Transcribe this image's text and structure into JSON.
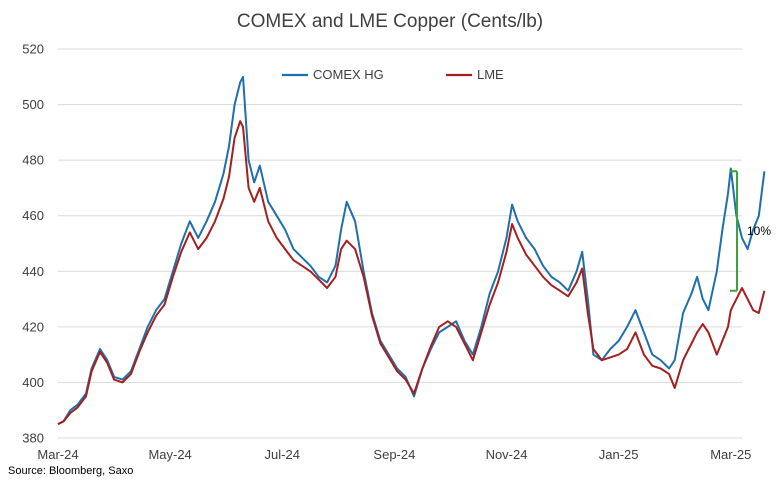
{
  "chart_data": {
    "type": "line",
    "title": "COMEX and LME Copper (Cents/lb)",
    "xlabel": "",
    "ylabel": "",
    "ylim": [
      380,
      520
    ],
    "yticks": [
      380,
      400,
      420,
      440,
      460,
      480,
      500,
      520
    ],
    "xticks": [
      "Mar-24",
      "May-24",
      "Jul-24",
      "Sep-24",
      "Nov-24",
      "Jan-25",
      "Mar-25"
    ],
    "xlim_months": [
      0,
      12.2
    ],
    "series": [
      {
        "name": "COMEX HG",
        "color": "#1f6fad",
        "points": [
          [
            0.0,
            385
          ],
          [
            0.1,
            386
          ],
          [
            0.22,
            390
          ],
          [
            0.35,
            392
          ],
          [
            0.5,
            396
          ],
          [
            0.6,
            405
          ],
          [
            0.75,
            412
          ],
          [
            0.88,
            408
          ],
          [
            1.0,
            402
          ],
          [
            1.15,
            401
          ],
          [
            1.3,
            404
          ],
          [
            1.45,
            412
          ],
          [
            1.6,
            420
          ],
          [
            1.75,
            426
          ],
          [
            1.9,
            430
          ],
          [
            2.05,
            440
          ],
          [
            2.2,
            450
          ],
          [
            2.35,
            458
          ],
          [
            2.5,
            452
          ],
          [
            2.65,
            458
          ],
          [
            2.8,
            465
          ],
          [
            2.95,
            475
          ],
          [
            3.05,
            485
          ],
          [
            3.15,
            500
          ],
          [
            3.25,
            508
          ],
          [
            3.3,
            510
          ],
          [
            3.4,
            480
          ],
          [
            3.5,
            472
          ],
          [
            3.6,
            478
          ],
          [
            3.75,
            465
          ],
          [
            3.9,
            460
          ],
          [
            4.05,
            455
          ],
          [
            4.2,
            448
          ],
          [
            4.35,
            445
          ],
          [
            4.5,
            442
          ],
          [
            4.65,
            438
          ],
          [
            4.8,
            436
          ],
          [
            4.95,
            442
          ],
          [
            5.05,
            455
          ],
          [
            5.15,
            465
          ],
          [
            5.3,
            458
          ],
          [
            5.45,
            440
          ],
          [
            5.6,
            425
          ],
          [
            5.75,
            415
          ],
          [
            5.9,
            410
          ],
          [
            6.05,
            405
          ],
          [
            6.2,
            402
          ],
          [
            6.35,
            395
          ],
          [
            6.5,
            405
          ],
          [
            6.65,
            412
          ],
          [
            6.8,
            418
          ],
          [
            6.95,
            420
          ],
          [
            7.1,
            422
          ],
          [
            7.25,
            415
          ],
          [
            7.4,
            410
          ],
          [
            7.55,
            420
          ],
          [
            7.7,
            432
          ],
          [
            7.85,
            440
          ],
          [
            8.0,
            452
          ],
          [
            8.1,
            464
          ],
          [
            8.2,
            458
          ],
          [
            8.35,
            452
          ],
          [
            8.5,
            448
          ],
          [
            8.65,
            442
          ],
          [
            8.8,
            438
          ],
          [
            8.95,
            436
          ],
          [
            9.1,
            433
          ],
          [
            9.25,
            440
          ],
          [
            9.35,
            447
          ],
          [
            9.45,
            430
          ],
          [
            9.55,
            410
          ],
          [
            9.7,
            408
          ],
          [
            9.85,
            412
          ],
          [
            10.0,
            415
          ],
          [
            10.15,
            420
          ],
          [
            10.3,
            426
          ],
          [
            10.45,
            418
          ],
          [
            10.6,
            410
          ],
          [
            10.75,
            408
          ],
          [
            10.9,
            405
          ],
          [
            11.0,
            408
          ],
          [
            11.15,
            425
          ],
          [
            11.3,
            432
          ],
          [
            11.4,
            438
          ],
          [
            11.5,
            430
          ],
          [
            11.6,
            426
          ],
          [
            11.75,
            440
          ],
          [
            11.85,
            455
          ],
          [
            11.95,
            468
          ],
          [
            12.0,
            477
          ],
          [
            12.1,
            460
          ],
          [
            12.2,
            452
          ],
          [
            12.3,
            448
          ],
          [
            12.4,
            455
          ],
          [
            12.5,
            460
          ],
          [
            12.6,
            476
          ]
        ]
      },
      {
        "name": "LME",
        "color": "#a51f1f",
        "points": [
          [
            0.0,
            385
          ],
          [
            0.1,
            386
          ],
          [
            0.22,
            389
          ],
          [
            0.35,
            391
          ],
          [
            0.5,
            395
          ],
          [
            0.6,
            404
          ],
          [
            0.75,
            411
          ],
          [
            0.88,
            407
          ],
          [
            1.0,
            401
          ],
          [
            1.15,
            400
          ],
          [
            1.3,
            403
          ],
          [
            1.45,
            411
          ],
          [
            1.6,
            418
          ],
          [
            1.75,
            424
          ],
          [
            1.9,
            428
          ],
          [
            2.05,
            438
          ],
          [
            2.2,
            447
          ],
          [
            2.35,
            454
          ],
          [
            2.5,
            448
          ],
          [
            2.65,
            452
          ],
          [
            2.8,
            458
          ],
          [
            2.95,
            466
          ],
          [
            3.05,
            474
          ],
          [
            3.15,
            488
          ],
          [
            3.25,
            494
          ],
          [
            3.3,
            492
          ],
          [
            3.4,
            470
          ],
          [
            3.5,
            465
          ],
          [
            3.6,
            470
          ],
          [
            3.75,
            458
          ],
          [
            3.9,
            452
          ],
          [
            4.05,
            448
          ],
          [
            4.2,
            444
          ],
          [
            4.35,
            442
          ],
          [
            4.5,
            440
          ],
          [
            4.65,
            437
          ],
          [
            4.8,
            434
          ],
          [
            4.95,
            438
          ],
          [
            5.05,
            448
          ],
          [
            5.15,
            451
          ],
          [
            5.3,
            448
          ],
          [
            5.45,
            438
          ],
          [
            5.6,
            424
          ],
          [
            5.75,
            414
          ],
          [
            5.9,
            409
          ],
          [
            6.05,
            404
          ],
          [
            6.2,
            401
          ],
          [
            6.35,
            396
          ],
          [
            6.5,
            405
          ],
          [
            6.65,
            413
          ],
          [
            6.8,
            420
          ],
          [
            6.95,
            422
          ],
          [
            7.1,
            420
          ],
          [
            7.25,
            414
          ],
          [
            7.4,
            408
          ],
          [
            7.55,
            418
          ],
          [
            7.7,
            428
          ],
          [
            7.85,
            436
          ],
          [
            8.0,
            447
          ],
          [
            8.1,
            457
          ],
          [
            8.2,
            452
          ],
          [
            8.35,
            446
          ],
          [
            8.5,
            442
          ],
          [
            8.65,
            438
          ],
          [
            8.8,
            435
          ],
          [
            8.95,
            433
          ],
          [
            9.1,
            431
          ],
          [
            9.25,
            436
          ],
          [
            9.35,
            441
          ],
          [
            9.45,
            425
          ],
          [
            9.55,
            412
          ],
          [
            9.7,
            408
          ],
          [
            9.85,
            409
          ],
          [
            10.0,
            410
          ],
          [
            10.15,
            412
          ],
          [
            10.3,
            418
          ],
          [
            10.45,
            410
          ],
          [
            10.6,
            406
          ],
          [
            10.75,
            405
          ],
          [
            10.9,
            403
          ],
          [
            11.0,
            398
          ],
          [
            11.15,
            408
          ],
          [
            11.3,
            414
          ],
          [
            11.4,
            418
          ],
          [
            11.5,
            421
          ],
          [
            11.6,
            418
          ],
          [
            11.75,
            410
          ],
          [
            11.85,
            415
          ],
          [
            11.95,
            420
          ],
          [
            12.0,
            426
          ],
          [
            12.1,
            430
          ],
          [
            12.2,
            434
          ],
          [
            12.3,
            430
          ],
          [
            12.4,
            426
          ],
          [
            12.5,
            425
          ],
          [
            12.6,
            433
          ]
        ]
      }
    ],
    "annotation": {
      "label": "10%",
      "from": 433,
      "to": 476,
      "color": "#3aa33a"
    },
    "legend_position": "top-center",
    "grid": "horizontal"
  },
  "source": "Source: Bloomberg, Saxo"
}
